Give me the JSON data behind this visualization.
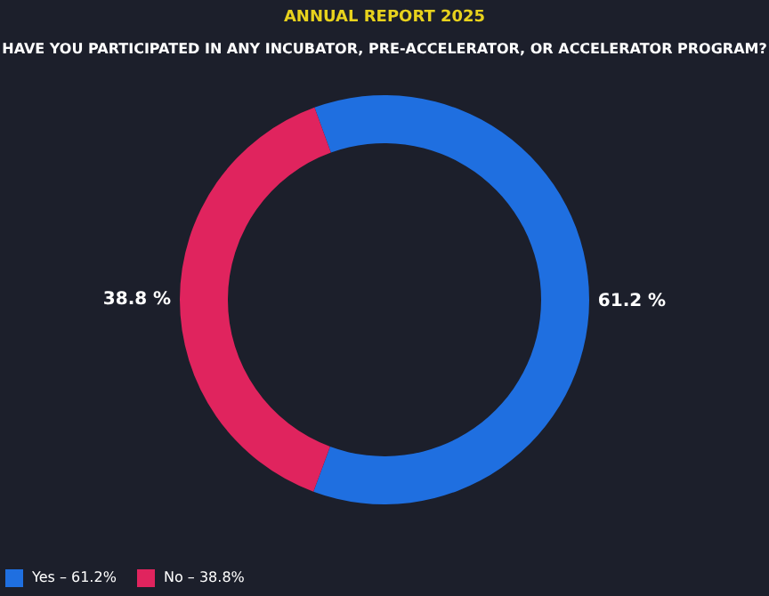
{
  "chart_data": {
    "type": "donut",
    "title": "ANNUAL REPORT 2025",
    "subtitle": "HAVE YOU PARTICIPATED IN ANY INCUBATOR, PRE-ACCELERATOR, OR ACCELERATOR PROGRAM?",
    "categories": [
      "Yes – 61.2%",
      "No – 38.8%"
    ],
    "values": [
      61.2,
      38.8
    ],
    "colors": [
      "#1f6fe0",
      "#e0245e"
    ],
    "value_labels": [
      "61.2 %",
      "38.8 %"
    ],
    "legend": "bottom"
  }
}
